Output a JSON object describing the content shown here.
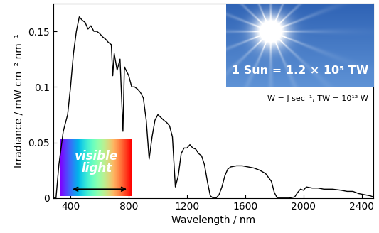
{
  "chart_data": {
    "type": "line",
    "x_label": "Wavelength / nm",
    "y_label": "Irradiance / mW cm⁻² nm⁻¹",
    "x": [
      280,
      300,
      320,
      350,
      380,
      400,
      420,
      440,
      460,
      480,
      500,
      520,
      540,
      560,
      580,
      600,
      620,
      640,
      660,
      680,
      690,
      700,
      720,
      740,
      760,
      770,
      800,
      820,
      840,
      860,
      880,
      900,
      920,
      940,
      960,
      980,
      1000,
      1040,
      1060,
      1080,
      1100,
      1120,
      1140,
      1160,
      1180,
      1200,
      1220,
      1240,
      1260,
      1280,
      1300,
      1320,
      1340,
      1360,
      1380,
      1400,
      1420,
      1440,
      1460,
      1480,
      1500,
      1540,
      1580,
      1620,
      1660,
      1700,
      1740,
      1780,
      1800,
      1820,
      1900,
      1940,
      1960,
      1980,
      2000,
      2020,
      2060,
      2100,
      2140,
      2200,
      2260,
      2300,
      2340,
      2380,
      2420,
      2460,
      2480
    ],
    "values": [
      0,
      0.0,
      0.03,
      0.06,
      0.075,
      0.1,
      0.13,
      0.15,
      0.163,
      0.16,
      0.158,
      0.152,
      0.155,
      0.15,
      0.15,
      0.148,
      0.145,
      0.143,
      0.14,
      0.138,
      0.11,
      0.13,
      0.115,
      0.125,
      0.06,
      0.118,
      0.11,
      0.1,
      0.1,
      0.098,
      0.095,
      0.09,
      0.07,
      0.035,
      0.055,
      0.07,
      0.075,
      0.07,
      0.068,
      0.065,
      0.055,
      0.01,
      0.02,
      0.04,
      0.045,
      0.045,
      0.048,
      0.045,
      0.044,
      0.04,
      0.038,
      0.03,
      0.015,
      0.002,
      0,
      0,
      0.003,
      0.01,
      0.02,
      0.026,
      0.028,
      0.029,
      0.029,
      0.028,
      0.027,
      0.025,
      0.022,
      0.015,
      0.005,
      0,
      0,
      0.001,
      0.005,
      0.008,
      0.007,
      0.01,
      0.009,
      0.009,
      0.008,
      0.008,
      0.007,
      0.006,
      0.006,
      0.004,
      0.003,
      0.002,
      0.001
    ],
    "color": "#000000",
    "xlim": [
      280,
      2480
    ],
    "xticks": [
      400,
      800,
      1200,
      1600,
      2000,
      2400
    ],
    "ylim": [
      0,
      0.175
    ],
    "yticks": [
      0,
      0.05,
      0.1,
      0.15
    ],
    "grid": false,
    "visible_light": {
      "text": "visible light",
      "range": [
        400,
        800
      ]
    },
    "inset_text": "1 Sun = 1.2 × 10⁵ TW",
    "note": "W = J sec⁻¹, TW = 10¹² W"
  }
}
